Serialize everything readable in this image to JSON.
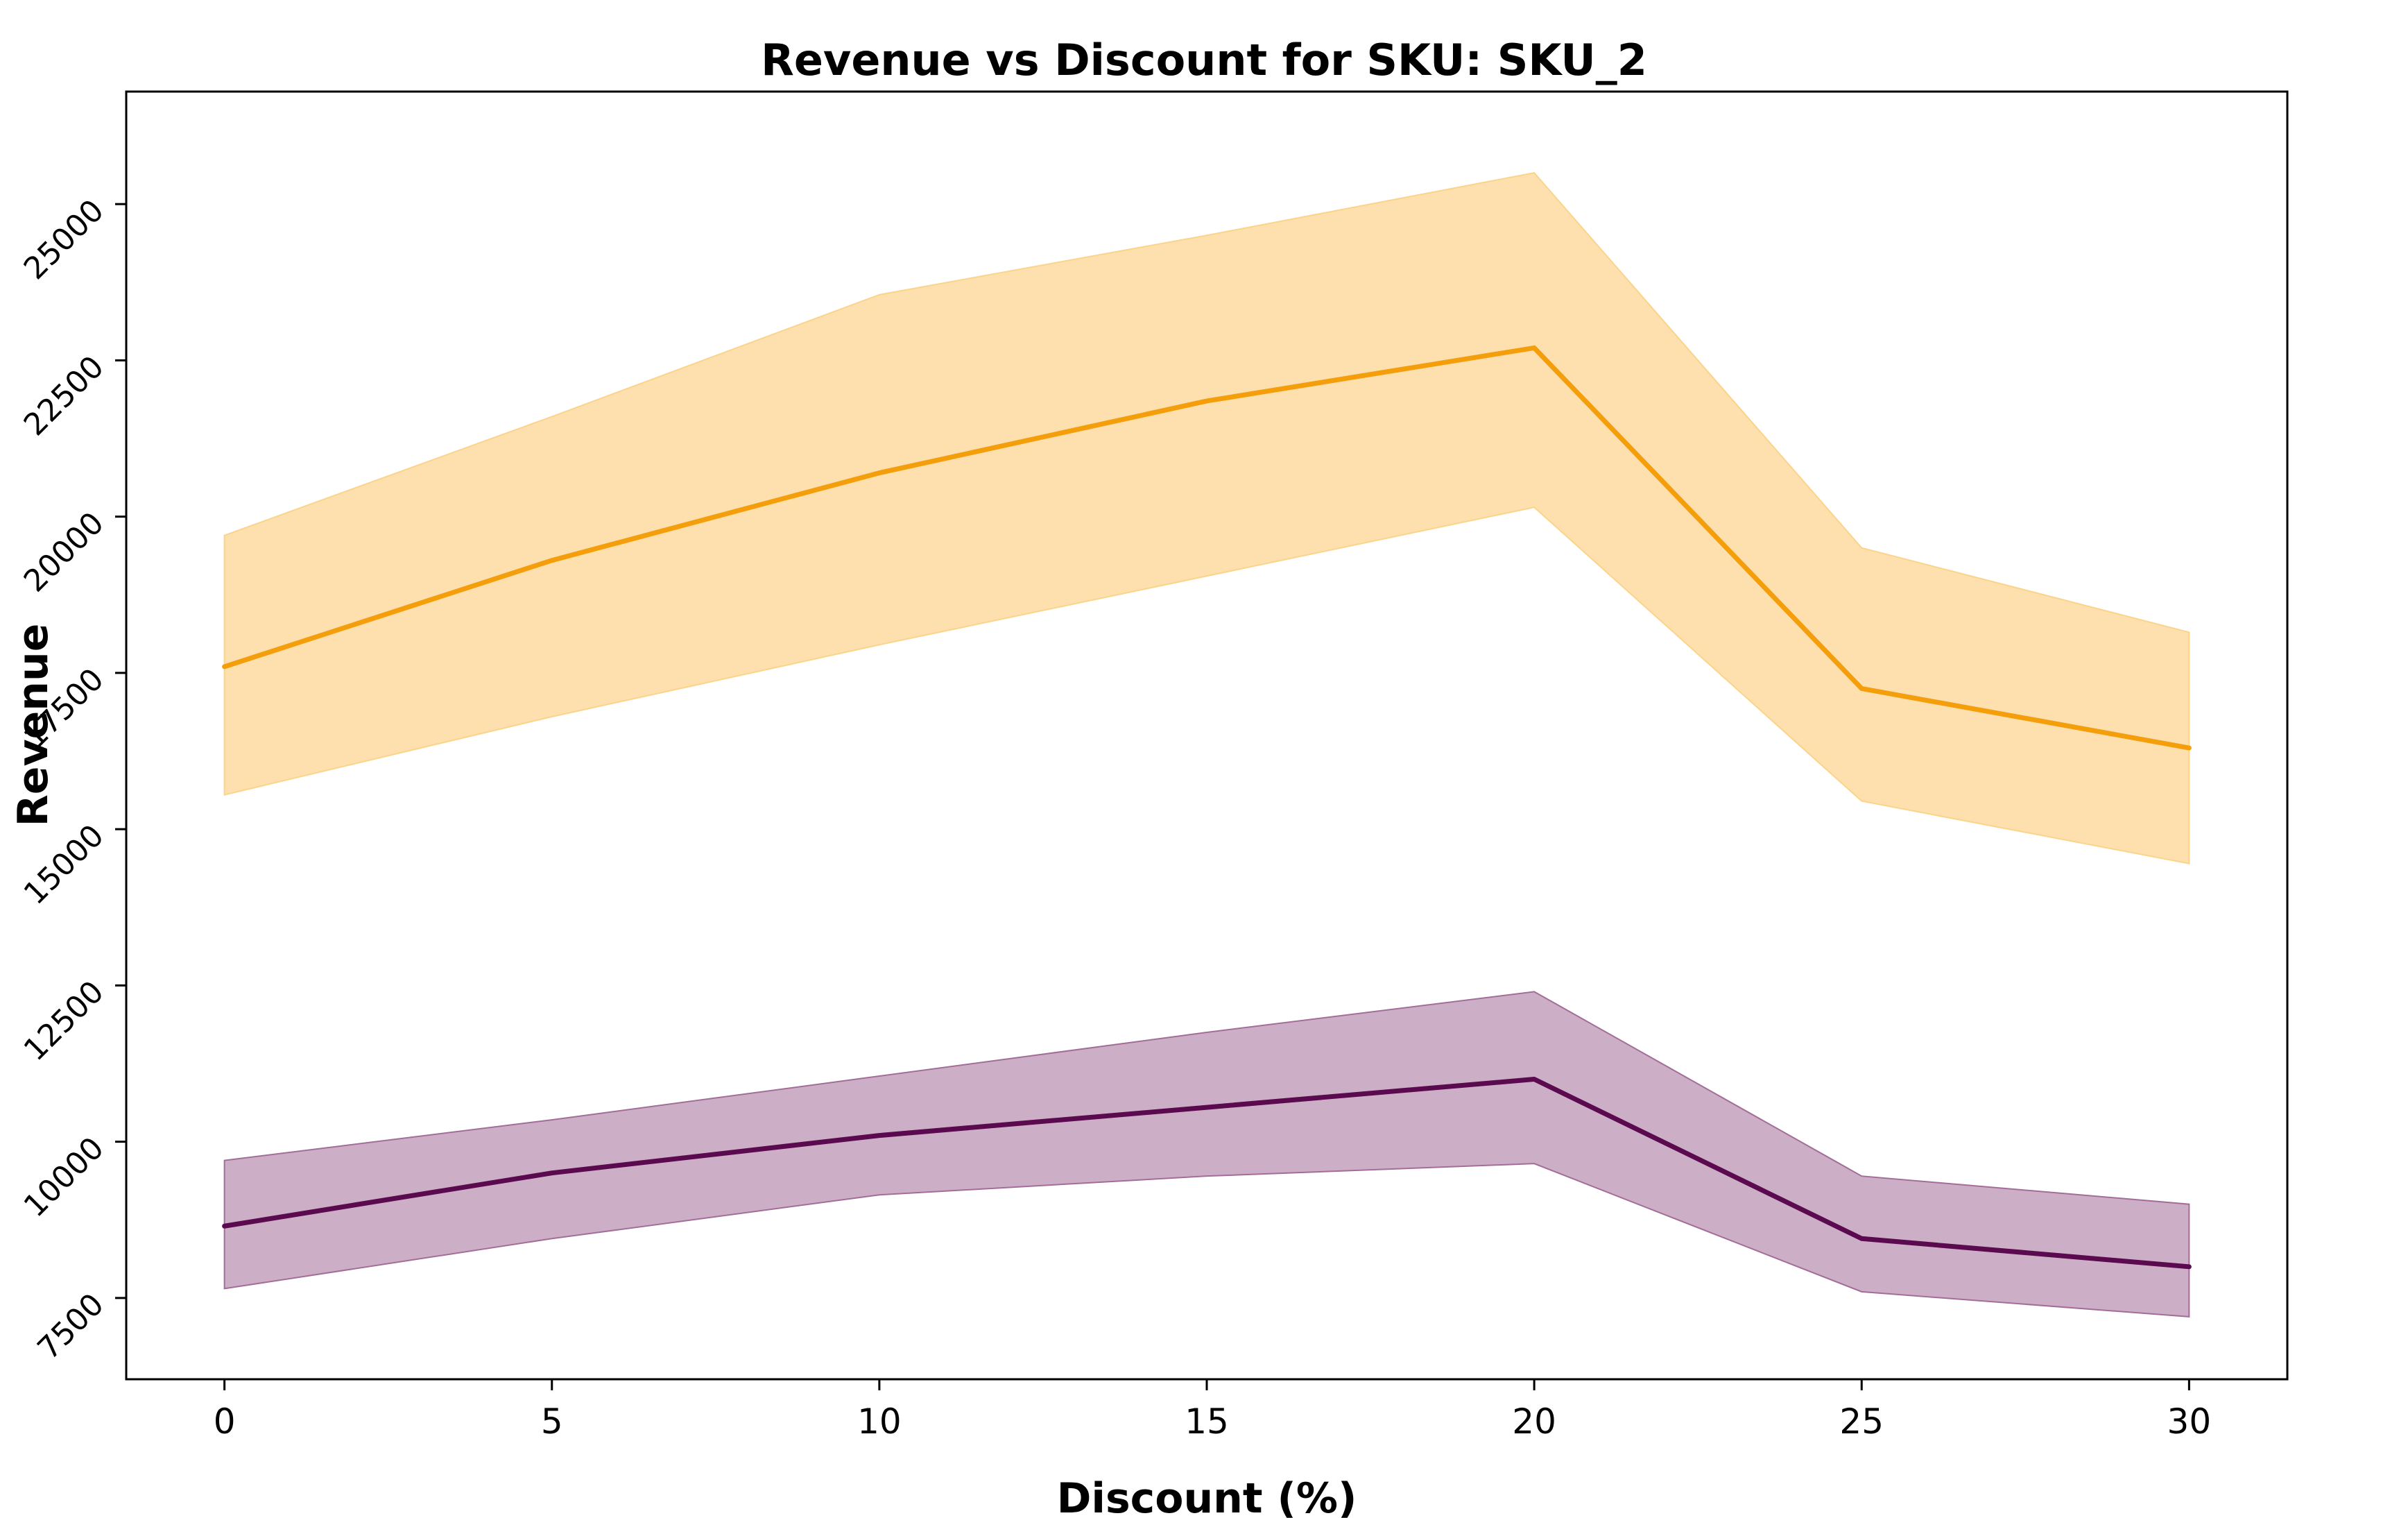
{
  "chart_data": {
    "type": "line",
    "title": "Revenue vs Discount for SKU: SKU_2",
    "xlabel": "Discount (%)",
    "ylabel": "Revenue",
    "x": [
      0,
      5,
      10,
      15,
      20,
      25,
      30
    ],
    "xlim": [
      -1.5,
      31.5
    ],
    "ylim": [
      6200,
      26800
    ],
    "x_ticks": [
      0,
      5,
      10,
      15,
      20,
      25,
      30
    ],
    "y_ticks": [
      7500,
      10000,
      12500,
      15000,
      17500,
      20000,
      22500,
      25000
    ],
    "x_tick_labels": [
      "0",
      "5",
      "10",
      "15",
      "20",
      "25",
      "30"
    ],
    "y_tick_labels": [
      "7500",
      "10000",
      "12500",
      "15000",
      "17500",
      "20000",
      "22500",
      "25000"
    ],
    "grid": false,
    "legend": "none",
    "series": [
      {
        "color": "#f59e0b",
        "band_color": "#fcd38a",
        "values": [
          17600,
          19300,
          20700,
          21850,
          22700,
          17250,
          16300
        ],
        "band_lower": [
          15550,
          16800,
          17950,
          19050,
          20150,
          15450,
          14450
        ],
        "band_upper": [
          19700,
          21600,
          23550,
          24500,
          25500,
          19500,
          18150
        ]
      },
      {
        "color": "#5b0a4f",
        "band_color": "#a36d98",
        "values": [
          8650,
          9500,
          10100,
          10550,
          11000,
          8450,
          8000
        ],
        "band_lower": [
          7650,
          8450,
          9150,
          9450,
          9650,
          7600,
          7200
        ],
        "band_upper": [
          9700,
          10350,
          11050,
          11750,
          12400,
          9450,
          9000
        ]
      }
    ]
  }
}
